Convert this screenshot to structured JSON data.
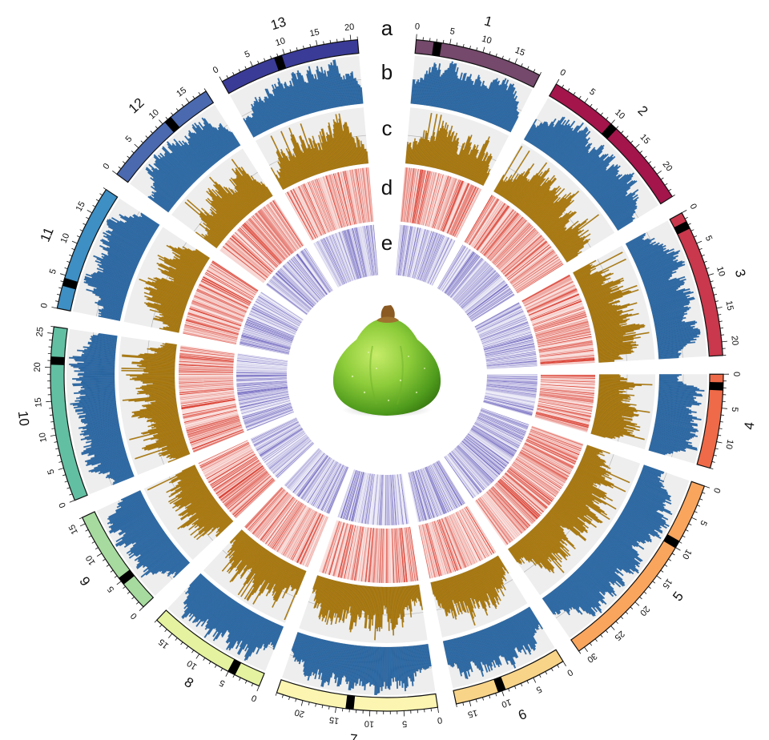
{
  "track_letters": [
    "a",
    "b",
    "c",
    "d",
    "e"
  ],
  "colors": {
    "density_bar": "#2f6ca8",
    "gc_bar": "#b07d10",
    "heat_red": "#d62d1e",
    "heat_purple": "#4a3fae",
    "track_bg": "#eeeeee",
    "centromere": "#000000"
  },
  "center_image": "green-fig-fruit",
  "chromosomes": [
    {
      "name": "1",
      "length": 19,
      "centromere": 3.2,
      "color": "#74496b",
      "ticks": [
        "0",
        "5",
        "10",
        "15"
      ]
    },
    {
      "name": "2",
      "length": 24,
      "centromere": 10.5,
      "color": "#a3154b",
      "ticks": [
        "0",
        "5",
        "10",
        "15",
        "20"
      ]
    },
    {
      "name": "3",
      "length": 22,
      "centromere": 2.0,
      "color": "#c9384c",
      "ticks": [
        "0",
        "5",
        "10",
        "15",
        "20"
      ]
    },
    {
      "name": "4",
      "length": 14,
      "centromere": 1.8,
      "color": "#ef6a48",
      "ticks": [
        "0",
        "5",
        "10"
      ]
    },
    {
      "name": "5",
      "length": 31,
      "centromere": 9.5,
      "color": "#f9a55e",
      "ticks": [
        "0",
        "5",
        "10",
        "15",
        "20",
        "25",
        "30"
      ]
    },
    {
      "name": "6",
      "length": 17,
      "centromere": 10.0,
      "color": "#f8d489",
      "ticks": [
        "0",
        "5",
        "10",
        "15"
      ]
    },
    {
      "name": "7",
      "length": 24,
      "centromere": 13.0,
      "color": "#fbf5b1",
      "ticks": [
        "0",
        "5",
        "10",
        "15",
        "20"
      ]
    },
    {
      "name": "8",
      "length": 18,
      "centromere": 4.5,
      "color": "#e5f29f",
      "ticks": [
        "0",
        "5",
        "10",
        "15"
      ]
    },
    {
      "name": "9",
      "length": 16,
      "centromere": 5.0,
      "color": "#a6da9e",
      "ticks": [
        "0",
        "5",
        "10",
        "15"
      ]
    },
    {
      "name": "10",
      "length": 26,
      "centromere": 21.0,
      "color": "#62bfa2",
      "ticks": [
        "0",
        "5",
        "10",
        "15",
        "20",
        "25"
      ]
    },
    {
      "name": "11",
      "length": 19,
      "centromere": 4.0,
      "color": "#3d8fc4",
      "ticks": [
        "0",
        "5",
        "10",
        "15"
      ]
    },
    {
      "name": "12",
      "length": 18,
      "centromere": 11.0,
      "color": "#4a69af",
      "ticks": [
        "0",
        "5",
        "10",
        "15"
      ]
    },
    {
      "name": "13",
      "length": 21,
      "centromere": 9.0,
      "color": "#3a3b97",
      "ticks": [
        "0",
        "5",
        "10",
        "15",
        "20"
      ]
    }
  ]
}
